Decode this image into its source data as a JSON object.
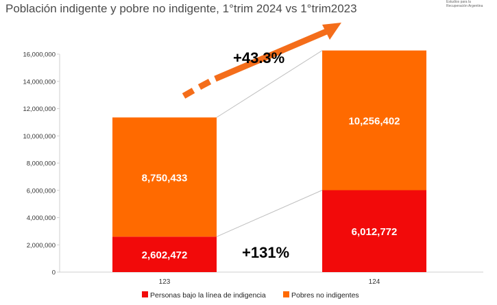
{
  "title": "Población indigente y pobre no indigente, 1°trim 2024 vs 1°trim2023",
  "org": {
    "line1": "Estudios para la",
    "line2": "Recuperación Argentina"
  },
  "colors": {
    "indigentes": "#f20a0a",
    "pobres": "#ff6a00",
    "arrow": "#f46d1a",
    "connector": "#bfbfbf"
  },
  "annotations": {
    "pct_total": "+43.3%",
    "pct_indigent": "+131%"
  },
  "chart_data": {
    "type": "bar",
    "stacked": true,
    "categories": [
      "123",
      "124"
    ],
    "series": [
      {
        "name": "Personas bajo la línea de indigencia",
        "values": [
          2602472,
          6012772
        ],
        "labels": [
          "2,602,472",
          "6,012,772"
        ],
        "color": "#f20a0a"
      },
      {
        "name": "Pobres no indigentes",
        "values": [
          8750433,
          10256402
        ],
        "labels": [
          "8,750,433",
          "10,256,402"
        ],
        "color": "#ff6a00"
      }
    ],
    "ylim": [
      0,
      16000000
    ],
    "yticks": [
      {
        "value": 0,
        "label": "0"
      },
      {
        "value": 2000000,
        "label": "2,000,000"
      },
      {
        "value": 4000000,
        "label": "4,000,000"
      },
      {
        "value": 6000000,
        "label": "6,000,000"
      },
      {
        "value": 8000000,
        "label": "8,000,000"
      },
      {
        "value": 10000000,
        "label": "10,000,000"
      },
      {
        "value": 12000000,
        "label": "12,000,000"
      },
      {
        "value": 14000000,
        "label": "14,000,000"
      },
      {
        "value": 16000000,
        "label": "16,000,000"
      }
    ],
    "grid": false,
    "legend": "bottom"
  }
}
